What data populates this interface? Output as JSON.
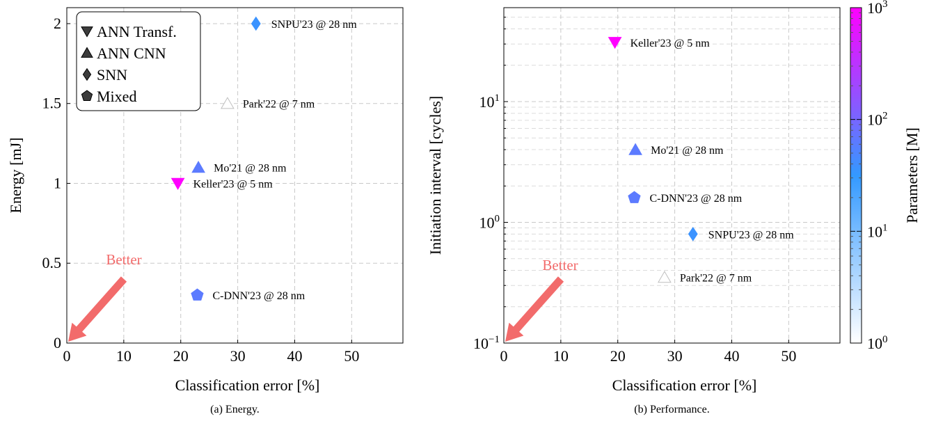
{
  "chart_data": [
    {
      "type": "scatter",
      "caption": "(a) Energy.",
      "xlabel": "Classification error [%]",
      "ylabel": "Energy [mJ]",
      "xlim": [
        0,
        59
      ],
      "ylim": [
        0,
        2.1
      ],
      "xscale": "linear",
      "yscale": "linear",
      "xticks": [
        0,
        10,
        20,
        30,
        40,
        50
      ],
      "xtick_labels": [
        "0",
        "10",
        "20",
        "30",
        "40",
        "50"
      ],
      "yticks": [
        0,
        0.5,
        1,
        1.5,
        2
      ],
      "ytick_labels": [
        "0",
        "0.5",
        "1",
        "1.5",
        "2"
      ],
      "grid": true,
      "legend_position": "top-left",
      "legend": [
        {
          "marker": "triangle-down",
          "label": "ANN Transf."
        },
        {
          "marker": "triangle-up",
          "label": "ANN CNN"
        },
        {
          "marker": "diamond",
          "label": "SNN"
        },
        {
          "marker": "pentagon",
          "label": "Mixed"
        }
      ],
      "annotation": {
        "text": "Better",
        "arrow": "toward-origin",
        "color": "#f26b6b"
      },
      "points": [
        {
          "label": "SNPU'23 @ 28 nm",
          "x": 33.2,
          "y": 2.0,
          "marker": "diamond",
          "params": 12
        },
        {
          "label": "Park'22 @ 7 nm",
          "x": 28.2,
          "y": 1.5,
          "marker": "triangle-up",
          "params": 1
        },
        {
          "label": "Mo'21 @ 28 nm",
          "x": 23.1,
          "y": 1.1,
          "marker": "triangle-up",
          "params": 25
        },
        {
          "label": "Keller'23 @ 5 nm",
          "x": 19.5,
          "y": 1.0,
          "marker": "triangle-down",
          "params": 1000
        },
        {
          "label": "C-DNN'23 @ 28 nm",
          "x": 22.9,
          "y": 0.3,
          "marker": "pentagon",
          "params": 25
        }
      ]
    },
    {
      "type": "scatter",
      "caption": "(b) Performance.",
      "xlabel": "Classification error [%]",
      "ylabel": "Initiation interval [cycles]",
      "xlim": [
        0,
        59
      ],
      "ylim": [
        0.1,
        60
      ],
      "xscale": "linear",
      "yscale": "log",
      "xticks": [
        0,
        10,
        20,
        30,
        40,
        50
      ],
      "xtick_labels": [
        "0",
        "10",
        "20",
        "30",
        "40",
        "50"
      ],
      "ytick_labels": [
        {
          "value": 0.1,
          "base": "10",
          "exp": "−1"
        },
        {
          "value": 1,
          "base": "10",
          "exp": "0"
        },
        {
          "value": 10,
          "base": "10",
          "exp": "1"
        }
      ],
      "grid": true,
      "annotation": {
        "text": "Better",
        "arrow": "toward-origin",
        "color": "#f26b6b"
      },
      "colorbar": {
        "label": "Parameters [M]",
        "scale": "log",
        "range": [
          1,
          1000
        ],
        "tick_labels": [
          {
            "value": 1,
            "base": "10",
            "exp": "0"
          },
          {
            "value": 10,
            "base": "10",
            "exp": "1"
          },
          {
            "value": 100,
            "base": "10",
            "exp": "2"
          },
          {
            "value": 1000,
            "base": "10",
            "exp": "3"
          }
        ],
        "colors": [
          "#ffffff",
          "#3399ff",
          "#ff00ff"
        ]
      },
      "points": [
        {
          "label": "Keller'23 @ 5 nm",
          "x": 19.5,
          "y": 31,
          "marker": "triangle-down",
          "params": 1000
        },
        {
          "label": "Mo'21 @ 28 nm",
          "x": 23.1,
          "y": 4.0,
          "marker": "triangle-up",
          "params": 25
        },
        {
          "label": "C-DNN'23 @ 28 nm",
          "x": 22.9,
          "y": 1.6,
          "marker": "pentagon",
          "params": 25
        },
        {
          "label": "SNPU'23 @ 28 nm",
          "x": 33.2,
          "y": 0.8,
          "marker": "diamond",
          "params": 12
        },
        {
          "label": "Park'22 @ 7 nm",
          "x": 28.2,
          "y": 0.35,
          "marker": "triangle-up",
          "params": 1
        }
      ]
    }
  ]
}
